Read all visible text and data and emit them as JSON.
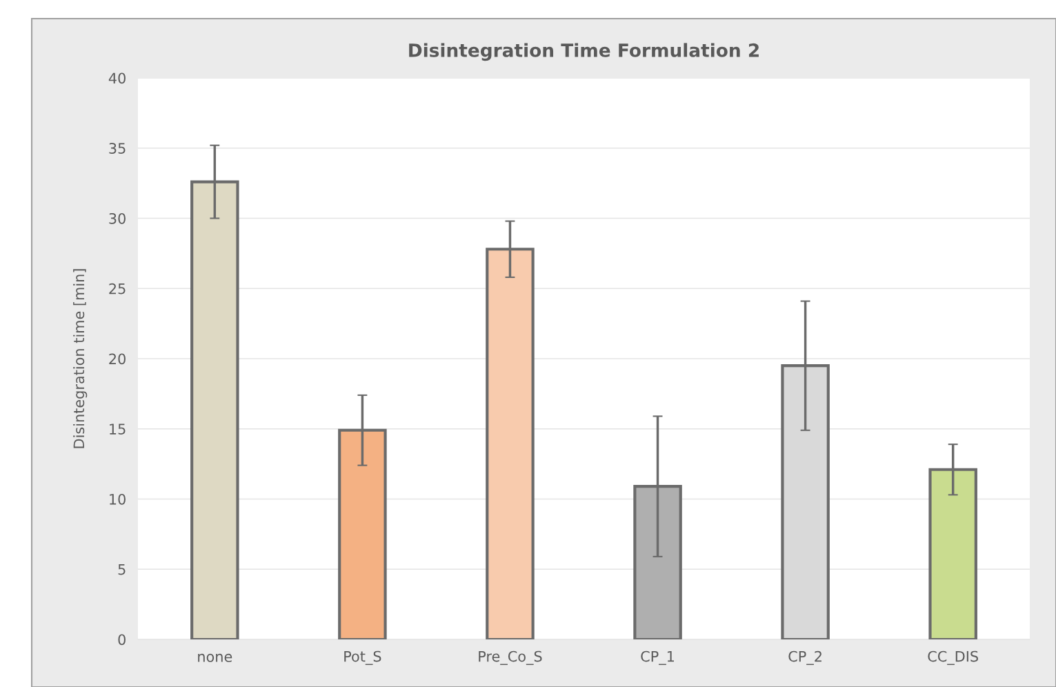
{
  "chart_data": {
    "type": "bar",
    "title": "Disintegration Time Formulation 2",
    "ylabel": "Disintegration time [min]",
    "categories": [
      "none",
      "Pot_S",
      "Pre_Co_S",
      "CP_1",
      "CP_2",
      "CC_DIS"
    ],
    "values": [
      32.6,
      14.9,
      27.8,
      10.9,
      19.5,
      12.1
    ],
    "errors": [
      2.6,
      2.5,
      2.0,
      5.0,
      4.6,
      1.8
    ],
    "colors": [
      "#ded9c3",
      "#f4b183",
      "#f8cbad",
      "#afafaf",
      "#d9d9d9",
      "#c9dc8f"
    ],
    "ylim": [
      0,
      40
    ],
    "yticks": [
      0,
      5,
      10,
      15,
      20,
      25,
      30,
      35,
      40
    ],
    "grid": "y",
    "legend": false
  }
}
